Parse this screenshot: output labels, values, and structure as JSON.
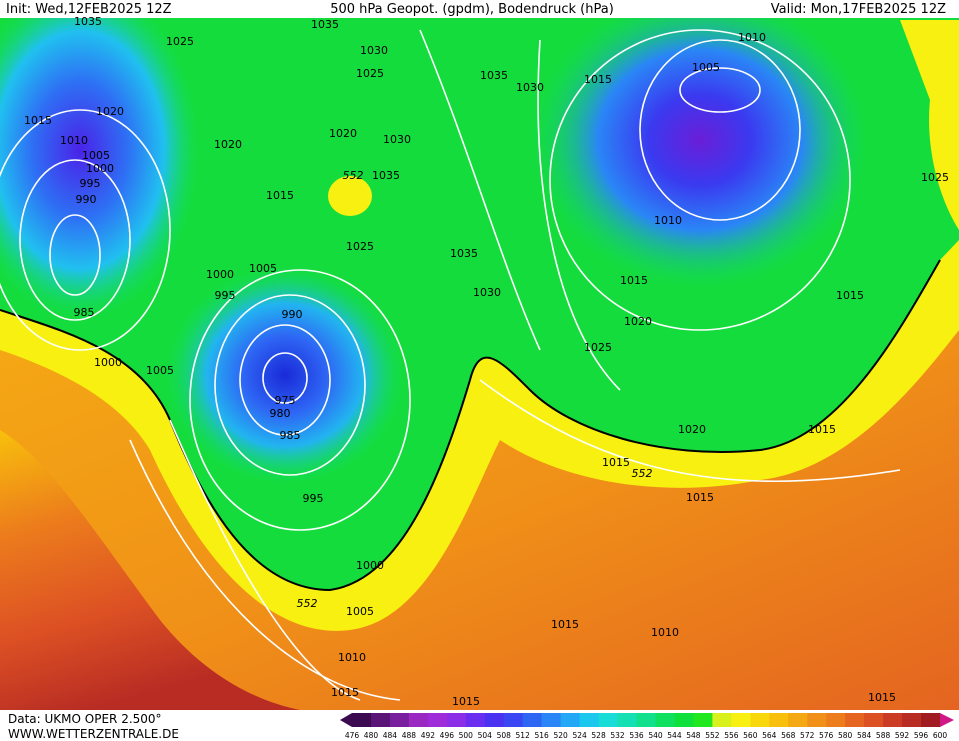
{
  "header": {
    "init": "Init: Wed,12FEB2025 12Z",
    "title": "500 hPa Geopot. (gpdm), Bodendruck (hPa)",
    "valid": "Valid: Mon,17FEB2025 12Z"
  },
  "footer": {
    "source": "Data: UKMO OPER 2.500°",
    "site": "WWW.WETTERZENTRALE.DE"
  },
  "isobar_labels": [
    1035,
    1025,
    1020,
    1015,
    1010,
    1005,
    1000,
    995,
    990,
    985,
    1000,
    1005,
    1000,
    995,
    1005,
    990,
    975,
    980,
    985,
    995,
    1000,
    1005,
    1010,
    1015,
    1015,
    1015,
    1010,
    1015,
    1015,
    1020,
    1015,
    1025,
    1020,
    1015,
    1015,
    1010,
    1005,
    1010,
    1015,
    1030,
    1035,
    1035,
    1030,
    1025,
    1015,
    1020,
    1020,
    1030,
    1035,
    1030,
    1025,
    1035,
    1025,
    1015
  ],
  "geopotential_labels": [
    552,
    552,
    552
  ],
  "legend": {
    "values": [
      476,
      480,
      484,
      488,
      492,
      496,
      500,
      504,
      508,
      512,
      516,
      520,
      524,
      528,
      532,
      536,
      540,
      544,
      548,
      552,
      556,
      560,
      564,
      568,
      572,
      576,
      580,
      584,
      588,
      592,
      596,
      600
    ],
    "colors": [
      "#3c0a50",
      "#5a1478",
      "#7a1ea0",
      "#9b28c0",
      "#a02bd8",
      "#8c2ee6",
      "#6a2ef0",
      "#4a32f0",
      "#3a46f2",
      "#2e66f4",
      "#2a86f6",
      "#22a8f4",
      "#1cc8ee",
      "#18dcd8",
      "#14e0b4",
      "#12e08c",
      "#10e060",
      "#10e03c",
      "#20e81c",
      "#d8f01c",
      "#f8f010",
      "#f8d80c",
      "#f8c00c",
      "#f4a814",
      "#f09018",
      "#ec7c1c",
      "#e46420",
      "#dc5024",
      "#cc3c24",
      "#b82c24",
      "#a01c20",
      "#881418"
    ]
  }
}
